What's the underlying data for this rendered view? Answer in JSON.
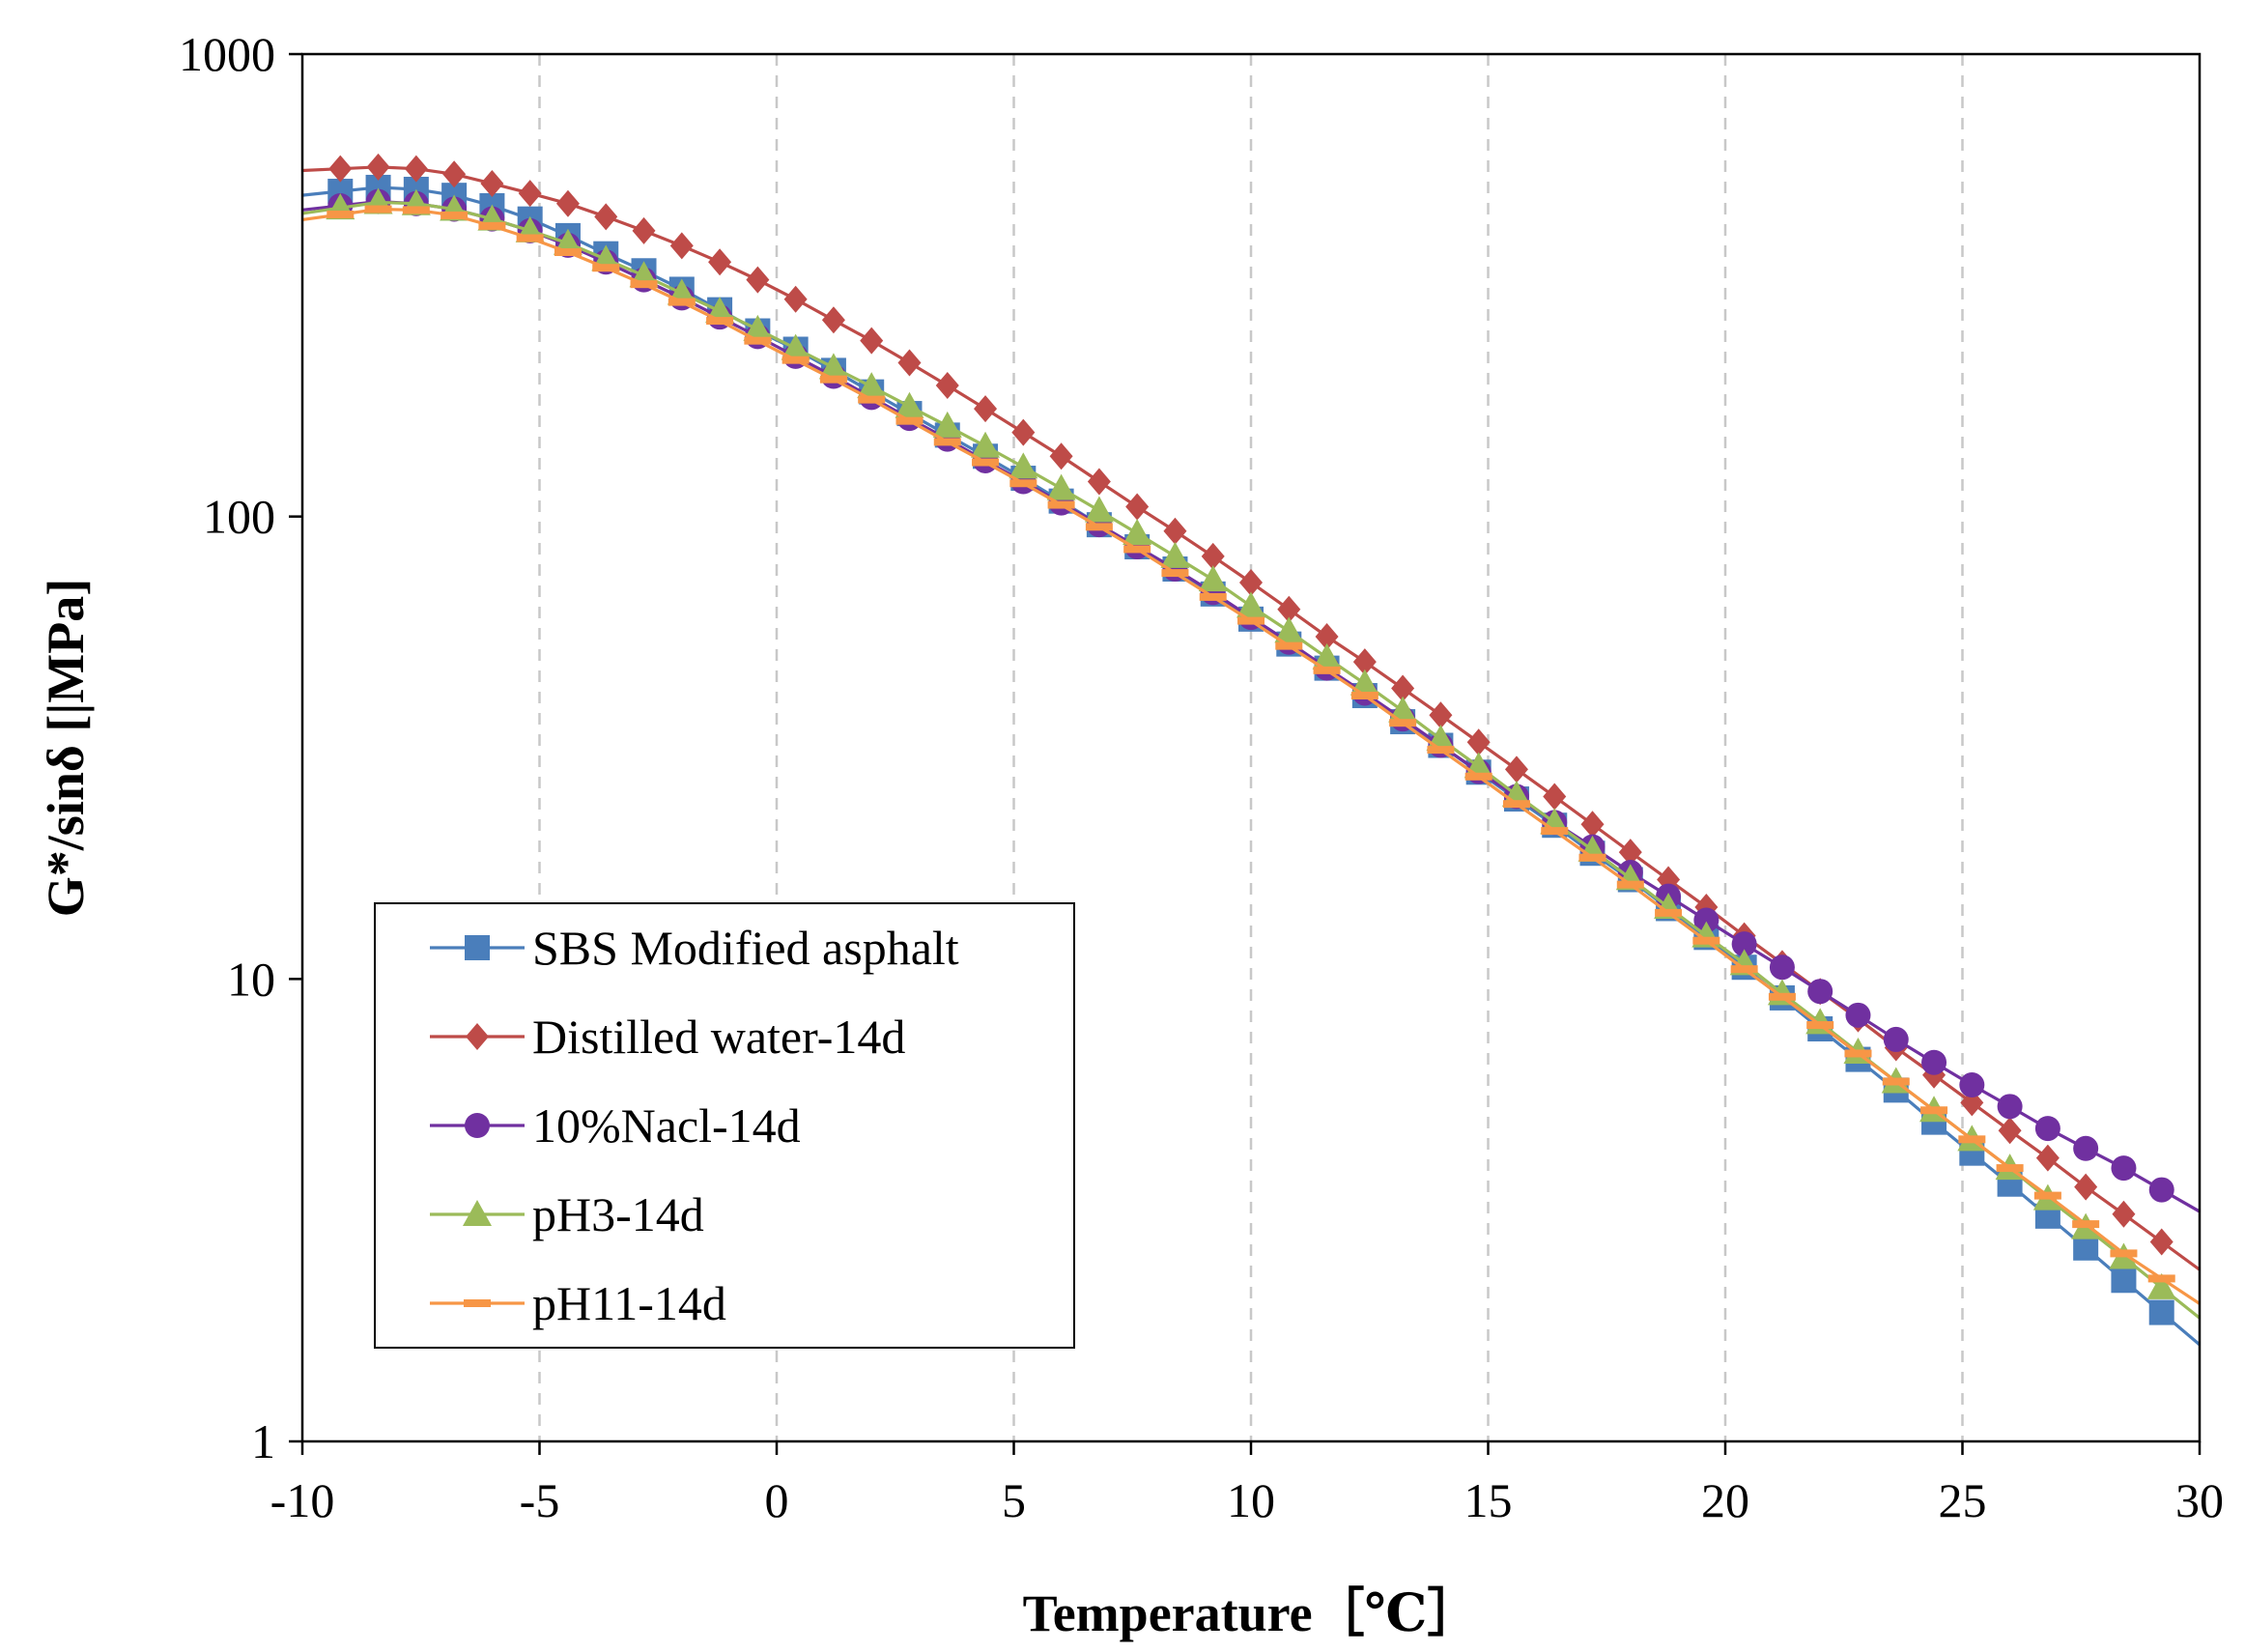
{
  "chart_data": {
    "type": "line",
    "title": "",
    "xlabel": "Temperature［℃］",
    "ylabel": "G*/sinδ [|MPa]",
    "xlim": [
      -10,
      30
    ],
    "ylim": [
      1,
      1000
    ],
    "yscale": "log",
    "grid": "vertical dashed",
    "legend_position": "lower-left",
    "x_ticks": [
      "-10",
      "-5",
      "0",
      "5",
      "10",
      "15",
      "20",
      "25",
      "30"
    ],
    "y_ticks": [
      "1",
      "10",
      "100",
      "1000"
    ],
    "x": [
      -9.2,
      -8.4,
      -7.6,
      -6.8,
      -6.0,
      -5.2,
      -4.4,
      -3.6,
      -2.8,
      -2.0,
      -1.2,
      -0.4,
      0.4,
      1.2,
      2.0,
      2.8,
      3.6,
      4.4,
      5.2,
      6.0,
      6.8,
      7.6,
      8.4,
      9.2,
      10.0,
      10.8,
      11.6,
      12.4,
      13.2,
      14.0,
      14.8,
      15.6,
      16.4,
      17.2,
      18.0,
      18.8,
      19.6,
      20.4,
      21.2,
      22.0,
      22.8,
      23.6,
      24.4,
      25.2,
      26.0,
      26.8,
      27.6,
      28.4,
      29.2
    ],
    "series": [
      {
        "name": "SBS Modified asphalt",
        "color": "#4A7EBB",
        "marker": "square",
        "values": [
          505,
          515,
          510,
          495,
          470,
          440,
          405,
          370,
          340,
          310,
          280,
          252,
          230,
          207,
          186,
          167,
          150,
          135,
          121,
          108,
          96,
          86,
          77,
          68,
          60,
          53,
          47,
          41,
          36,
          32,
          28,
          24.5,
          21.5,
          18.7,
          16.4,
          14.2,
          12.3,
          10.6,
          9.1,
          7.8,
          6.7,
          5.75,
          4.9,
          4.2,
          3.6,
          3.07,
          2.62,
          2.23,
          1.9
        ]
      },
      {
        "name": "Distilled water-14d",
        "color": "#BE4B48",
        "marker": "diamond",
        "values": [
          565,
          570,
          565,
          550,
          525,
          500,
          475,
          445,
          415,
          385,
          355,
          325,
          295,
          266,
          240,
          215,
          192,
          171,
          152,
          135,
          119,
          105,
          93,
          82,
          72,
          63,
          55,
          48.5,
          42.5,
          37.2,
          32.5,
          28.4,
          24.8,
          21.6,
          18.8,
          16.4,
          14.3,
          12.4,
          10.8,
          9.4,
          8.2,
          7.1,
          6.2,
          5.4,
          4.7,
          4.1,
          3.55,
          3.1,
          2.7
        ]
      },
      {
        "name": "10%Nacl-14d",
        "color": "#7030A0",
        "marker": "circle",
        "values": [
          470,
          480,
          475,
          462,
          440,
          415,
          386,
          355,
          325,
          297,
          270,
          245,
          222,
          201,
          181,
          163,
          147,
          132,
          119,
          107,
          96,
          86,
          77,
          68.5,
          60.5,
          53.5,
          47,
          41.5,
          36.5,
          32,
          28.1,
          24.8,
          21.8,
          19.3,
          17,
          15.1,
          13.4,
          11.9,
          10.6,
          9.4,
          8.35,
          7.4,
          6.6,
          5.9,
          5.3,
          4.75,
          4.3,
          3.9,
          3.5
        ]
      },
      {
        "name": "pH3-14d",
        "color": "#9BBB59",
        "marker": "triangle",
        "values": [
          465,
          478,
          475,
          462,
          440,
          415,
          390,
          360,
          332,
          304,
          278,
          254,
          231,
          210,
          191,
          173,
          157,
          142,
          128,
          115,
          103,
          92,
          82,
          73,
          64,
          56.5,
          49.5,
          43.5,
          38,
          33,
          28.8,
          25,
          21.8,
          19,
          16.5,
          14.3,
          12.4,
          10.8,
          9.3,
          8.05,
          6.95,
          6,
          5.2,
          4.5,
          3.9,
          3.35,
          2.9,
          2.5,
          2.15
        ]
      },
      {
        "name": "pH11-14d",
        "color": "#F79646",
        "marker": "dash",
        "values": [
          450,
          462,
          460,
          448,
          425,
          400,
          373,
          345,
          318,
          291,
          265,
          240,
          218,
          198,
          179,
          161,
          145,
          131,
          118,
          106,
          95,
          85,
          75.5,
          67,
          59.5,
          52.5,
          46.5,
          41,
          35.8,
          31.3,
          27.4,
          23.9,
          20.9,
          18.3,
          16,
          13.9,
          12.1,
          10.5,
          9.15,
          7.95,
          6.9,
          6,
          5.2,
          4.5,
          3.9,
          3.4,
          2.95,
          2.55,
          2.25
        ]
      }
    ]
  }
}
